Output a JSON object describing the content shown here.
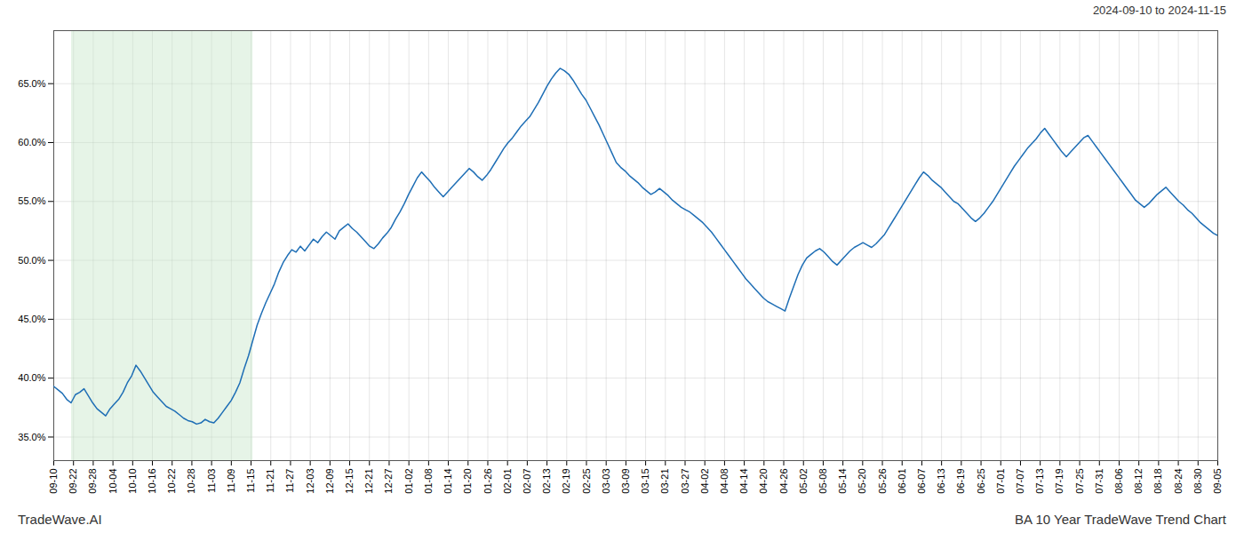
{
  "chart_data": {
    "type": "line",
    "title": "BA 10 Year TradeWave Trend Chart",
    "subtitle": "2024-09-10 to 2024-11-15",
    "caption": "TradeWave.AI",
    "color": "#1e6eb5",
    "grid": true,
    "highlight": {
      "x": [
        0.9,
        10.1
      ],
      "color": "#c8e6c9"
    },
    "ylim": [
      0.33,
      0.695
    ],
    "yticks": [
      {
        "value": 0.35,
        "label": "35.0%"
      },
      {
        "value": 0.4,
        "label": "40.0%"
      },
      {
        "value": 0.45,
        "label": "45.0%"
      },
      {
        "value": 0.5,
        "label": "50.0%"
      },
      {
        "value": 0.55,
        "label": "55.0%"
      },
      {
        "value": 0.6,
        "label": "60.0%"
      },
      {
        "value": 0.65,
        "label": "65.0%"
      }
    ],
    "xlim": [
      0,
      59
    ],
    "xticks": [
      {
        "value": 0,
        "label": "09-10"
      },
      {
        "value": 1,
        "label": "09-22"
      },
      {
        "value": 2,
        "label": "09-28"
      },
      {
        "value": 3,
        "label": "10-04"
      },
      {
        "value": 4,
        "label": "10-10"
      },
      {
        "value": 5,
        "label": "10-16"
      },
      {
        "value": 6,
        "label": "10-22"
      },
      {
        "value": 7,
        "label": "10-28"
      },
      {
        "value": 8,
        "label": "11-03"
      },
      {
        "value": 9,
        "label": "11-09"
      },
      {
        "value": 10,
        "label": "11-15"
      },
      {
        "value": 11,
        "label": "11-21"
      },
      {
        "value": 12,
        "label": "11-27"
      },
      {
        "value": 13,
        "label": "12-03"
      },
      {
        "value": 14,
        "label": "12-09"
      },
      {
        "value": 15,
        "label": "12-15"
      },
      {
        "value": 16,
        "label": "12-21"
      },
      {
        "value": 17,
        "label": "12-27"
      },
      {
        "value": 18,
        "label": "01-02"
      },
      {
        "value": 19,
        "label": "01-08"
      },
      {
        "value": 20,
        "label": "01-14"
      },
      {
        "value": 21,
        "label": "01-20"
      },
      {
        "value": 22,
        "label": "01-26"
      },
      {
        "value": 23,
        "label": "02-01"
      },
      {
        "value": 24,
        "label": "02-07"
      },
      {
        "value": 25,
        "label": "02-13"
      },
      {
        "value": 26,
        "label": "02-19"
      },
      {
        "value": 27,
        "label": "02-25"
      },
      {
        "value": 28,
        "label": "03-03"
      },
      {
        "value": 29,
        "label": "03-09"
      },
      {
        "value": 30,
        "label": "03-15"
      },
      {
        "value": 31,
        "label": "03-21"
      },
      {
        "value": 32,
        "label": "03-27"
      },
      {
        "value": 33,
        "label": "04-02"
      },
      {
        "value": 34,
        "label": "04-08"
      },
      {
        "value": 35,
        "label": "04-14"
      },
      {
        "value": 36,
        "label": "04-20"
      },
      {
        "value": 37,
        "label": "04-26"
      },
      {
        "value": 38,
        "label": "05-02"
      },
      {
        "value": 39,
        "label": "05-08"
      },
      {
        "value": 40,
        "label": "05-14"
      },
      {
        "value": 41,
        "label": "05-20"
      },
      {
        "value": 42,
        "label": "05-26"
      },
      {
        "value": 43,
        "label": "06-01"
      },
      {
        "value": 44,
        "label": "06-07"
      },
      {
        "value": 45,
        "label": "06-13"
      },
      {
        "value": 46,
        "label": "06-19"
      },
      {
        "value": 47,
        "label": "06-25"
      },
      {
        "value": 48,
        "label": "07-01"
      },
      {
        "value": 49,
        "label": "07-07"
      },
      {
        "value": 50,
        "label": "07-13"
      },
      {
        "value": 51,
        "label": "07-19"
      },
      {
        "value": 52,
        "label": "07-25"
      },
      {
        "value": 53,
        "label": "07-31"
      },
      {
        "value": 54,
        "label": "08-06"
      },
      {
        "value": 55,
        "label": "08-12"
      },
      {
        "value": 56,
        "label": "08-18"
      },
      {
        "value": 57,
        "label": "08-24"
      },
      {
        "value": 58,
        "label": "08-30"
      },
      {
        "value": 59,
        "label": "09-05"
      }
    ],
    "values": [
      0.393,
      0.39,
      0.387,
      0.382,
      0.379,
      0.386,
      0.388,
      0.391,
      0.385,
      0.379,
      0.374,
      0.371,
      0.368,
      0.374,
      0.378,
      0.382,
      0.388,
      0.396,
      0.402,
      0.411,
      0.406,
      0.4,
      0.394,
      0.388,
      0.384,
      0.38,
      0.376,
      0.374,
      0.372,
      0.369,
      0.366,
      0.364,
      0.363,
      0.361,
      0.362,
      0.365,
      0.363,
      0.362,
      0.366,
      0.371,
      0.376,
      0.381,
      0.388,
      0.396,
      0.408,
      0.419,
      0.432,
      0.445,
      0.455,
      0.464,
      0.472,
      0.48,
      0.49,
      0.498,
      0.504,
      0.509,
      0.507,
      0.512,
      0.508,
      0.513,
      0.518,
      0.515,
      0.52,
      0.524,
      0.521,
      0.518,
      0.525,
      0.528,
      0.531,
      0.527,
      0.524,
      0.52,
      0.516,
      0.512,
      0.51,
      0.514,
      0.519,
      0.523,
      0.528,
      0.535,
      0.541,
      0.548,
      0.556,
      0.563,
      0.57,
      0.575,
      0.571,
      0.567,
      0.562,
      0.558,
      0.554,
      0.558,
      0.562,
      0.566,
      0.57,
      0.574,
      0.578,
      0.575,
      0.571,
      0.568,
      0.572,
      0.577,
      0.583,
      0.589,
      0.595,
      0.6,
      0.604,
      0.609,
      0.614,
      0.618,
      0.622,
      0.628,
      0.634,
      0.641,
      0.648,
      0.654,
      0.659,
      0.663,
      0.661,
      0.658,
      0.653,
      0.647,
      0.641,
      0.636,
      0.629,
      0.622,
      0.615,
      0.607,
      0.599,
      0.591,
      0.583,
      0.579,
      0.576,
      0.572,
      0.569,
      0.566,
      0.562,
      0.559,
      0.556,
      0.558,
      0.561,
      0.558,
      0.555,
      0.551,
      0.548,
      0.545,
      0.543,
      0.541,
      0.538,
      0.535,
      0.532,
      0.528,
      0.524,
      0.519,
      0.514,
      0.509,
      0.504,
      0.499,
      0.494,
      0.489,
      0.484,
      0.48,
      0.476,
      0.472,
      0.468,
      0.465,
      0.463,
      0.461,
      0.459,
      0.457,
      0.468,
      0.478,
      0.488,
      0.496,
      0.502,
      0.505,
      0.508,
      0.51,
      0.507,
      0.503,
      0.499,
      0.496,
      0.5,
      0.504,
      0.508,
      0.511,
      0.513,
      0.515,
      0.513,
      0.511,
      0.514,
      0.518,
      0.522,
      0.528,
      0.534,
      0.54,
      0.546,
      0.552,
      0.558,
      0.564,
      0.57,
      0.575,
      0.572,
      0.568,
      0.565,
      0.562,
      0.558,
      0.554,
      0.55,
      0.548,
      0.544,
      0.54,
      0.536,
      0.533,
      0.536,
      0.54,
      0.545,
      0.55,
      0.556,
      0.562,
      0.568,
      0.574,
      0.58,
      0.585,
      0.59,
      0.595,
      0.599,
      0.603,
      0.608,
      0.612,
      0.607,
      0.602,
      0.597,
      0.592,
      0.588,
      0.592,
      0.596,
      0.6,
      0.604,
      0.606,
      0.601,
      0.596,
      0.591,
      0.586,
      0.581,
      0.576,
      0.571,
      0.566,
      0.561,
      0.556,
      0.551,
      0.548,
      0.545,
      0.548,
      0.552,
      0.556,
      0.559,
      0.562,
      0.558,
      0.554,
      0.55,
      0.547,
      0.543,
      0.54,
      0.536,
      0.532,
      0.529,
      0.526,
      0.523,
      0.521
    ]
  }
}
